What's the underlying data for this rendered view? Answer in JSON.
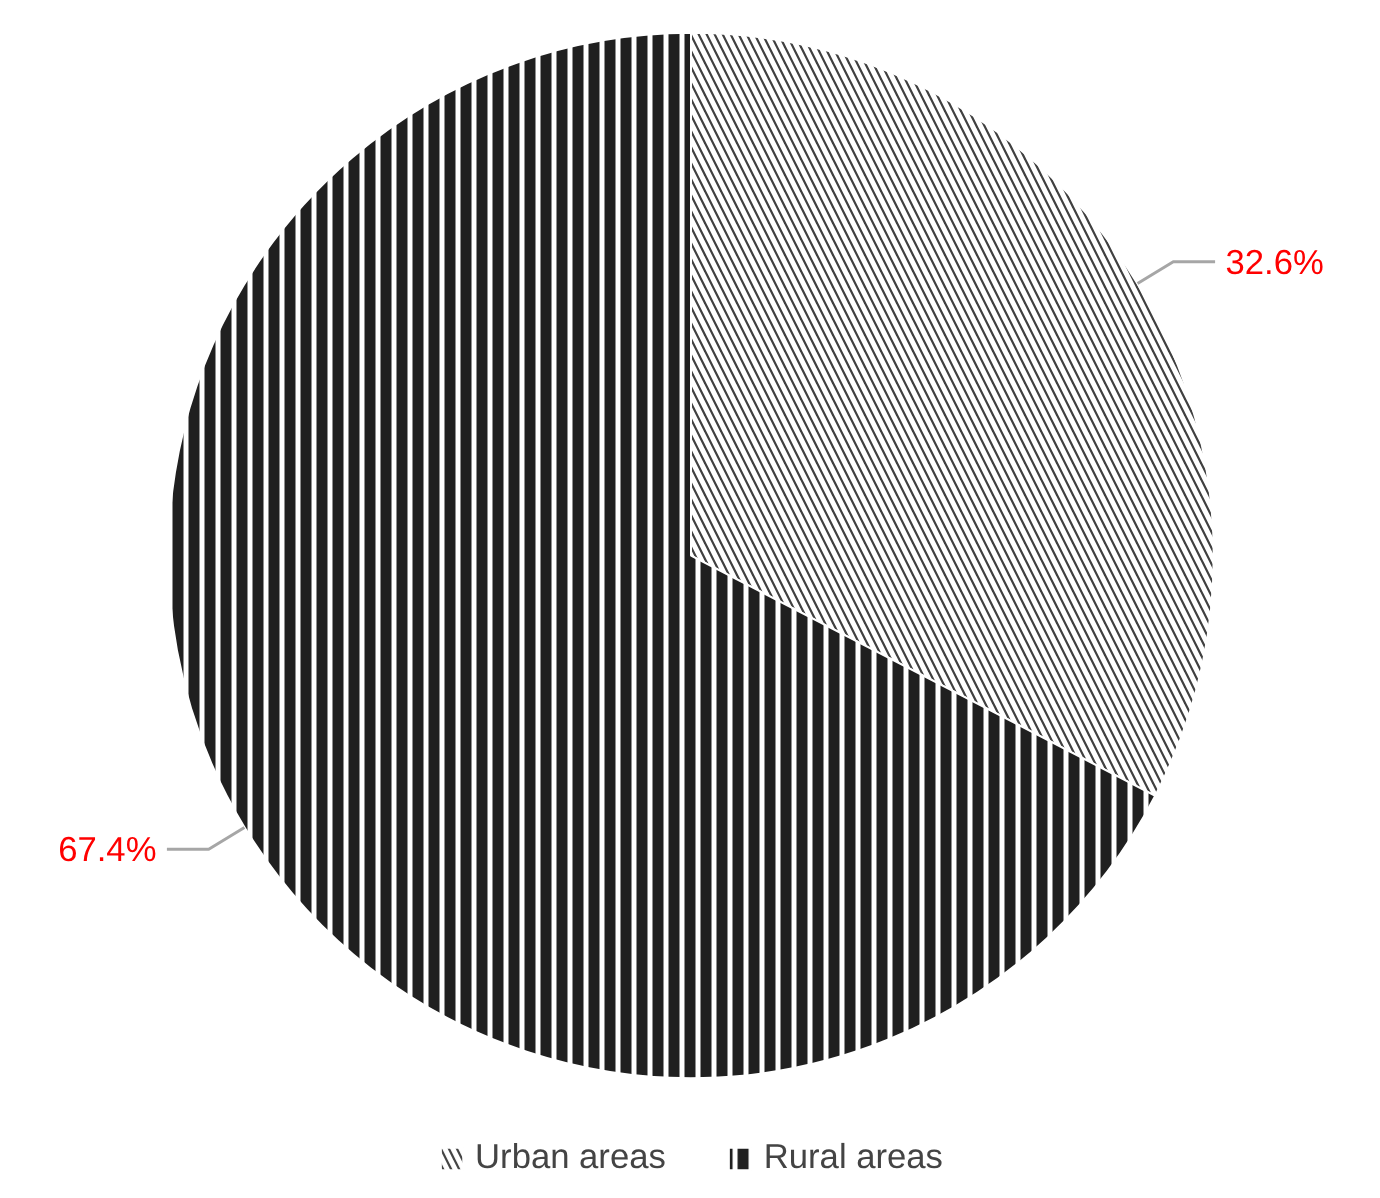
{
  "chart_data": {
    "type": "pie",
    "categories": [
      "Urban areas",
      "Rural areas"
    ],
    "values": [
      32.6,
      67.4
    ],
    "colors": [
      "#404040",
      "#202020"
    ],
    "value_labels": [
      "32.6%",
      "67.4%"
    ],
    "legend": "bottom"
  }
}
